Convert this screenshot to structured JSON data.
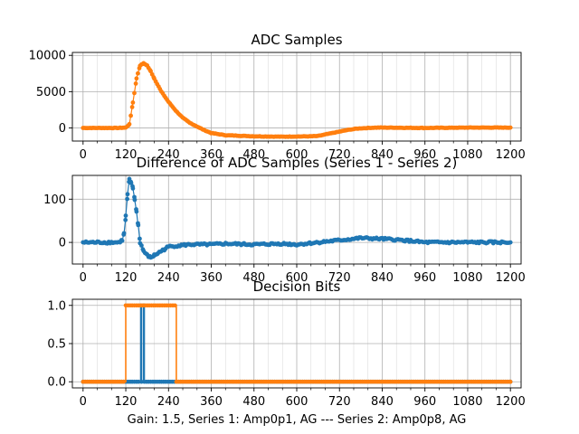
{
  "xlabel": "Gain: 1.5, Series 1: Amp0p1, AG --- Series 2: Amp0p8, AG",
  "colors": {
    "series1": "#1f77b4",
    "series2": "#ff7f0e",
    "grid": "#b0b0b0",
    "axes": "#000000"
  },
  "chart_data": [
    {
      "type": "scatter",
      "title": "ADC Samples",
      "xlim": [
        -30,
        1230
      ],
      "ylim": [
        -1800,
        10400
      ],
      "xticks": [
        0,
        120,
        240,
        360,
        480,
        600,
        720,
        840,
        960,
        1080,
        1200
      ],
      "yticks": [
        0,
        5000,
        10000
      ],
      "ytick_labels": [
        "0",
        "5000",
        "10000"
      ],
      "grid": true,
      "series": [
        {
          "color": "#ff7f0e",
          "x": [
            0,
            100,
            120,
            130,
            140,
            150,
            160,
            170,
            180,
            190,
            200,
            220,
            240,
            260,
            280,
            300,
            320,
            340,
            360,
            400,
            480,
            560,
            640,
            660,
            680,
            700,
            720,
            740,
            760,
            780,
            800,
            820,
            840,
            960,
            1080,
            1200
          ],
          "y": [
            0,
            0,
            50,
            500,
            3500,
            6800,
            8600,
            8900,
            8600,
            7800,
            6800,
            5000,
            3600,
            2400,
            1400,
            700,
            200,
            -300,
            -700,
            -1000,
            -1150,
            -1200,
            -1150,
            -1100,
            -900,
            -700,
            -500,
            -300,
            -150,
            -50,
            0,
            50,
            50,
            0,
            50,
            50
          ]
        }
      ]
    },
    {
      "type": "scatter",
      "title": "Difference of ADC Samples (Series 1 - Series 2)",
      "xlim": [
        -30,
        1230
      ],
      "ylim": [
        -50,
        155
      ],
      "xticks": [
        0,
        120,
        240,
        360,
        480,
        600,
        720,
        840,
        960,
        1080,
        1200
      ],
      "yticks": [
        0,
        100
      ],
      "ytick_labels": [
        "0",
        "100"
      ],
      "grid": true,
      "series": [
        {
          "color": "#1f77b4",
          "x": [
            0,
            100,
            110,
            115,
            120,
            125,
            130,
            135,
            140,
            145,
            150,
            155,
            160,
            170,
            180,
            190,
            200,
            210,
            220,
            240,
            260,
            300,
            360,
            400,
            480,
            560,
            600,
            660,
            720,
            780,
            840,
            900,
            960,
            1080,
            1200
          ],
          "y": [
            0,
            0,
            5,
            20,
            60,
            110,
            145,
            138,
            125,
            100,
            70,
            40,
            0,
            -20,
            -30,
            -35,
            -30,
            -25,
            -20,
            -10,
            -8,
            -5,
            -5,
            -3,
            -5,
            -3,
            -5,
            0,
            5,
            10,
            8,
            5,
            0,
            0,
            0
          ]
        }
      ]
    },
    {
      "type": "line",
      "title": "Decision Bits",
      "xlim": [
        -30,
        1230
      ],
      "ylim": [
        -0.08,
        1.08
      ],
      "xticks": [
        0,
        120,
        240,
        360,
        480,
        600,
        720,
        840,
        960,
        1080,
        1200
      ],
      "yticks": [
        0,
        0.5,
        1
      ],
      "ytick_labels": [
        "0.0",
        "0.5",
        "1.0"
      ],
      "grid": true,
      "series": [
        {
          "color": "#1f77b4",
          "x": [
            0,
            162,
            162,
            164,
            164,
            170,
            170,
            172,
            172,
            1200
          ],
          "y": [
            0,
            0,
            1,
            1,
            0,
            0,
            1,
            1,
            0,
            0
          ]
        },
        {
          "color": "#ff7f0e",
          "x": [
            0,
            120,
            120,
            262,
            262,
            1200
          ],
          "y": [
            0,
            0,
            1,
            1,
            0,
            0
          ]
        }
      ]
    }
  ]
}
